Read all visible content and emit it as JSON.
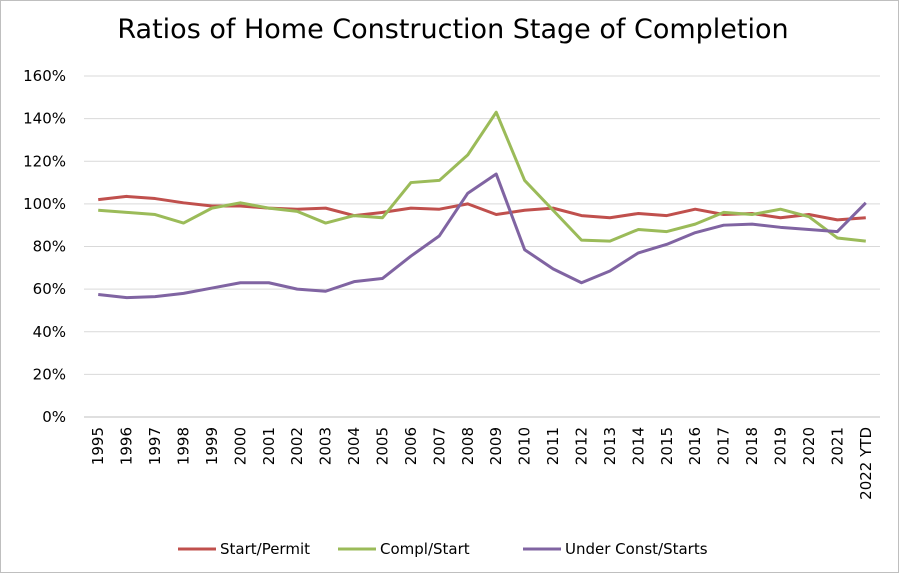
{
  "chart_data": {
    "type": "line",
    "title": "Ratios of Home Construction Stage of Completion",
    "categories": [
      "1995",
      "1996",
      "1997",
      "1998",
      "1999",
      "2000",
      "2001",
      "2002",
      "2003",
      "2004",
      "2005",
      "2006",
      "2007",
      "2008",
      "2009",
      "2010",
      "2011",
      "2012",
      "2013",
      "2014",
      "2015",
      "2016",
      "2017",
      "2018",
      "2019",
      "2020",
      "2021",
      "2022 YTD"
    ],
    "series": [
      {
        "name": "Start/Permit",
        "color": "#c0504d",
        "values": [
          102,
          103.5,
          102.5,
          100.5,
          99,
          99,
          98,
          97.5,
          98,
          94.5,
          96,
          98,
          97.5,
          100,
          95,
          97,
          98,
          94.5,
          93.5,
          95.5,
          94.5,
          97.5,
          95,
          95.5,
          93.5,
          95,
          92.5,
          93.5
        ]
      },
      {
        "name": "Compl/Start",
        "color": "#9bbb59",
        "values": [
          97,
          96,
          95,
          91,
          98,
          100.5,
          98,
          96.5,
          91,
          94.5,
          93.5,
          110,
          111,
          123,
          143,
          111,
          97,
          83,
          82.5,
          88,
          87,
          90.5,
          96,
          95,
          97.5,
          94,
          84,
          82.5
        ]
      },
      {
        "name": "Under Const/Starts",
        "color": "#8064a2",
        "values": [
          57.5,
          56,
          56.5,
          58,
          60.5,
          63,
          63,
          60,
          59,
          63.5,
          65,
          75.5,
          85,
          105,
          114,
          78.5,
          69.5,
          63,
          68.5,
          77,
          81,
          86.5,
          90,
          90.5,
          89,
          88,
          87,
          100.5
        ]
      }
    ],
    "ylim": [
      0,
      160
    ],
    "yticks": [
      {
        "value": 0,
        "label": "0%"
      },
      {
        "value": 20,
        "label": "20%"
      },
      {
        "value": 40,
        "label": "40%"
      },
      {
        "value": 60,
        "label": "60%"
      },
      {
        "value": 80,
        "label": "80%"
      },
      {
        "value": 100,
        "label": "100%"
      },
      {
        "value": 120,
        "label": "120%"
      },
      {
        "value": 140,
        "label": "140%"
      },
      {
        "value": 160,
        "label": "160%"
      }
    ],
    "grid": true,
    "legend": "bottom"
  }
}
